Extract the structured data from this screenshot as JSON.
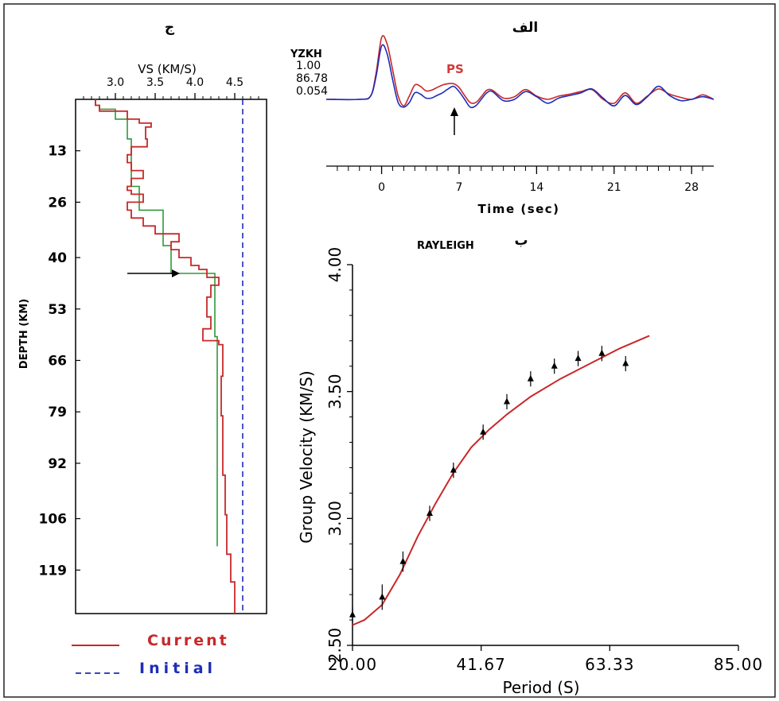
{
  "panels": {
    "a": {
      "letter": "الف",
      "station": "YZKH",
      "params": [
        "1.00",
        "86.78",
        "0.054"
      ],
      "ps_label": "PS",
      "x_title": "Time (sec)"
    },
    "b": {
      "letter": "ب",
      "wave_type": "RAYLEIGH",
      "x_title": "Period (S)",
      "y_title": "Group Velocity (KM/S)"
    },
    "c": {
      "letter": "ج",
      "x_title": "VS (KM/S)",
      "y_title": "DEPTH (KM)",
      "legend": [
        {
          "label": "Current",
          "color": "#c8282a"
        },
        {
          "label": "Initial",
          "color": "#1d2db8"
        }
      ]
    }
  },
  "chart_data": [
    {
      "type": "line",
      "panel": "ج",
      "x_label": "VS (KM/S)",
      "y_label": "DEPTH (KM)",
      "x_ticks": [
        "3.0",
        "3.5",
        "4.0",
        "4.5"
      ],
      "y_ticks": [
        "13",
        "26",
        "40",
        "53",
        "66",
        "79",
        "92",
        "106",
        "119"
      ],
      "xlim": [
        2.5,
        4.9
      ],
      "ylim": [
        0,
        130
      ],
      "y_inverted": true,
      "series": [
        {
          "name": "Current",
          "color": "#c8282a",
          "step": true,
          "vs": [
            2.75,
            2.8,
            3.15,
            3.3,
            3.45,
            3.38,
            3.4,
            3.2,
            3.15,
            3.2,
            3.35,
            3.2,
            3.15,
            3.2,
            3.35,
            3.15,
            3.2,
            3.35,
            3.5,
            3.8,
            3.7,
            3.8,
            3.95,
            4.05,
            4.15,
            4.3,
            4.2,
            4.15,
            4.2,
            4.1,
            4.3,
            4.35,
            4.33,
            4.35,
            4.38,
            4.4,
            4.45,
            4.5,
            4.5
          ],
          "depth_top": [
            0,
            1.5,
            3,
            5,
            6,
            7,
            10,
            12,
            14,
            16,
            18,
            20,
            22,
            23,
            24,
            26,
            28,
            30,
            32,
            34,
            36,
            38,
            40,
            42,
            43,
            45,
            47,
            50,
            55,
            58,
            61,
            62,
            70,
            80,
            95,
            105,
            115,
            122,
            130
          ]
        },
        {
          "name": "",
          "color": "#2e9a3a",
          "step": true,
          "vs": [
            2.75,
            2.8,
            3.0,
            3.15,
            3.2,
            3.3,
            3.6,
            3.7,
            4.25,
            4.28
          ],
          "depth_top": [
            0,
            1.5,
            2.5,
            5,
            10,
            22,
            28,
            37,
            44,
            60
          ],
          "depth_bottom": 113
        },
        {
          "name": "Initial",
          "color": "#1d2db8",
          "dashed": true,
          "vs": [
            4.6,
            4.6
          ],
          "depth": [
            0,
            130
          ]
        }
      ]
    },
    {
      "type": "line",
      "panel": "الف",
      "x_label": "Time (sec)",
      "x_ticks": [
        "0",
        "7",
        "14",
        "21",
        "28"
      ],
      "xlim": [
        -5,
        30
      ],
      "series": [
        {
          "name": "",
          "color": "#c8282a",
          "t": [
            -5,
            -2,
            -1,
            -0.5,
            0,
            0.5,
            1,
            1.5,
            2,
            2.5,
            3,
            3.5,
            4,
            4.5,
            5,
            5.5,
            6,
            6.5,
            7,
            7.5,
            8,
            8.5,
            9,
            9.5,
            10,
            11,
            12,
            13,
            14,
            15,
            16,
            17,
            18,
            19,
            20,
            21,
            22,
            23,
            24,
            25,
            26,
            27,
            28,
            29,
            30
          ],
          "amp": [
            0,
            0,
            0.05,
            0.4,
            0.95,
            0.85,
            0.45,
            0.05,
            -0.1,
            0.05,
            0.22,
            0.2,
            0.13,
            0.14,
            0.18,
            0.22,
            0.24,
            0.24,
            0.18,
            0.06,
            -0.05,
            -0.05,
            0.04,
            0.14,
            0.14,
            0.02,
            0.04,
            0.15,
            0.05,
            0,
            0.05,
            0.08,
            0.12,
            0.15,
            0,
            -0.06,
            0.1,
            -0.06,
            0.05,
            0.16,
            0.08,
            0.03,
            0,
            0.07,
            0
          ]
        },
        {
          "name": "",
          "color": "#1d2db8",
          "t": [
            -5,
            -2,
            -1,
            -0.5,
            0,
            0.5,
            1,
            1.5,
            2,
            2.5,
            3,
            3.5,
            4,
            4.5,
            5,
            5.5,
            6,
            6.5,
            7,
            7.5,
            8,
            8.5,
            9,
            9.5,
            10,
            11,
            12,
            13,
            14,
            15,
            16,
            17,
            18,
            19,
            20,
            21,
            22,
            23,
            24,
            25,
            26,
            27,
            28,
            29,
            30
          ],
          "amp": [
            0,
            0,
            0.05,
            0.35,
            0.82,
            0.7,
            0.3,
            -0.05,
            -0.12,
            -0.05,
            0.1,
            0.08,
            0.02,
            0.02,
            0.06,
            0.1,
            0.16,
            0.2,
            0.12,
            0.0,
            -0.12,
            -0.1,
            0.0,
            0.1,
            0.12,
            -0.02,
            0.0,
            0.12,
            0.04,
            -0.06,
            0.02,
            0.06,
            0.1,
            0.16,
            0.02,
            -0.1,
            0.06,
            -0.08,
            0.04,
            0.2,
            0.06,
            -0.02,
            0,
            0.04,
            0
          ]
        }
      ]
    },
    {
      "type": "scatter",
      "panel": "ب",
      "title": "RAYLEIGH",
      "xlabel": "Period (S)",
      "ylabel": "Group Velocity (KM/S)",
      "x_ticks": [
        "20.00",
        "41.67",
        "63.33",
        "85.00"
      ],
      "y_ticks": [
        "2.50",
        "3.00",
        "3.50",
        "4.00"
      ],
      "xlim": [
        20,
        85
      ],
      "ylim": [
        2.5,
        4.0
      ],
      "series": [
        {
          "name": "",
          "color": "#000000",
          "x": [
            20,
            25,
            28.5,
            33,
            37,
            42,
            46,
            50,
            54,
            58,
            62,
            66
          ],
          "y": [
            2.62,
            2.69,
            2.83,
            3.02,
            3.19,
            3.34,
            3.46,
            3.55,
            3.6,
            3.63,
            3.65,
            3.61
          ],
          "error": [
            0.03,
            0.05,
            0.04,
            0.03,
            0.03,
            0.03,
            0.03,
            0.03,
            0.03,
            0.03,
            0.03,
            0.03
          ]
        },
        {
          "name": "",
          "color": "#c8282a",
          "x": [
            20,
            22,
            25,
            28,
            31,
            34,
            37,
            40,
            43,
            46,
            50,
            55,
            60,
            65,
            70
          ],
          "y": [
            2.58,
            2.6,
            2.66,
            2.78,
            2.93,
            3.06,
            3.18,
            3.28,
            3.35,
            3.41,
            3.48,
            3.55,
            3.61,
            3.67,
            3.72
          ]
        }
      ]
    }
  ]
}
